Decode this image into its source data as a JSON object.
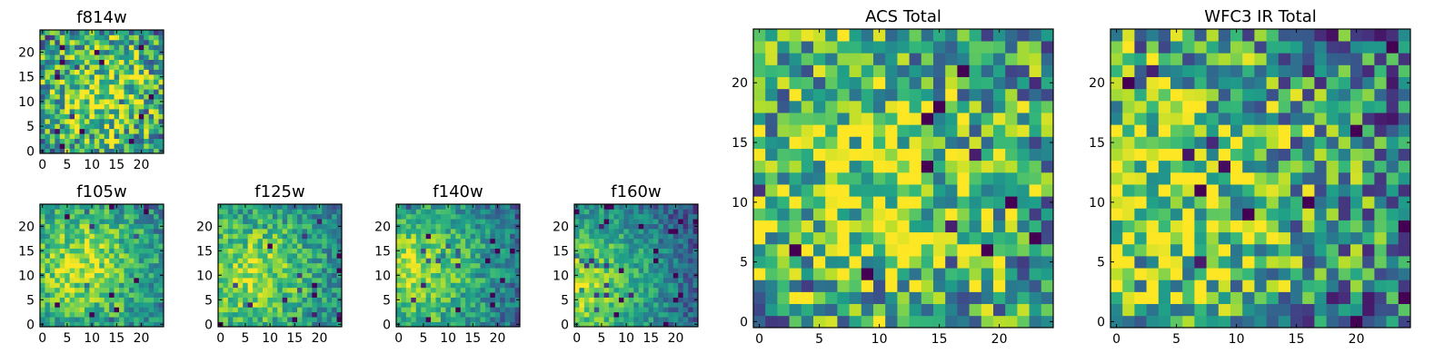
{
  "colormap": "viridis",
  "frame_color": "#000000",
  "chart_data": [
    {
      "id": "f814w",
      "type": "heatmap",
      "title": "f814w",
      "nx": 25,
      "ny": 25,
      "xlim": [
        -0.5,
        24.5
      ],
      "ylim": [
        -0.5,
        24.5
      ],
      "xticks": [
        0,
        5,
        10,
        15,
        20
      ],
      "xtick_labels": [
        "0",
        "5",
        "10",
        "15",
        "20"
      ],
      "yticks": [
        0,
        5,
        10,
        15,
        20
      ],
      "ytick_labels": [
        "0",
        "5",
        "10",
        "15",
        "20"
      ],
      "seed": 7,
      "center": [
        12,
        12
      ],
      "noise": 0.38
    },
    {
      "id": "f105w",
      "type": "heatmap",
      "title": "f105w",
      "nx": 25,
      "ny": 25,
      "xlim": [
        -0.5,
        24.5
      ],
      "ylim": [
        -0.5,
        24.5
      ],
      "xticks": [
        0,
        5,
        10,
        15,
        20
      ],
      "xtick_labels": [
        "0",
        "5",
        "10",
        "15",
        "20"
      ],
      "yticks": [
        0,
        5,
        10,
        15,
        20
      ],
      "ytick_labels": [
        "0",
        "5",
        "10",
        "15",
        "20"
      ],
      "seed": 11,
      "center": [
        8,
        12
      ],
      "noise": 0.22
    },
    {
      "id": "f125w",
      "type": "heatmap",
      "title": "f125w",
      "nx": 25,
      "ny": 25,
      "xlim": [
        -0.5,
        24.5
      ],
      "ylim": [
        -0.5,
        24.5
      ],
      "xticks": [
        0,
        5,
        10,
        15,
        20
      ],
      "xtick_labels": [
        "0",
        "5",
        "10",
        "15",
        "20"
      ],
      "yticks": [
        0,
        5,
        10,
        15,
        20
      ],
      "ytick_labels": [
        "0",
        "5",
        "10",
        "15",
        "20"
      ],
      "seed": 19,
      "center": [
        6,
        10
      ],
      "noise": 0.22
    },
    {
      "id": "f140w",
      "type": "heatmap",
      "title": "f140w",
      "nx": 25,
      "ny": 25,
      "xlim": [
        -0.5,
        24.5
      ],
      "ylim": [
        -0.5,
        24.5
      ],
      "xticks": [
        0,
        5,
        10,
        15,
        20
      ],
      "xtick_labels": [
        "0",
        "5",
        "10",
        "15",
        "20"
      ],
      "yticks": [
        0,
        5,
        10,
        15,
        20
      ],
      "ytick_labels": [
        "0",
        "5",
        "10",
        "15",
        "20"
      ],
      "seed": 23,
      "center": [
        3,
        11
      ],
      "noise": 0.2
    },
    {
      "id": "f160w",
      "type": "heatmap",
      "title": "f160w",
      "nx": 25,
      "ny": 25,
      "xlim": [
        -0.5,
        24.5
      ],
      "ylim": [
        -0.5,
        24.5
      ],
      "xticks": [
        0,
        5,
        10,
        15,
        20
      ],
      "xtick_labels": [
        "0",
        "5",
        "10",
        "15",
        "20"
      ],
      "yticks": [
        0,
        5,
        10,
        15,
        20
      ],
      "ytick_labels": [
        "0",
        "5",
        "10",
        "15",
        "20"
      ],
      "seed": 29,
      "center": [
        0,
        8
      ],
      "noise": 0.18
    },
    {
      "id": "acs_total",
      "type": "heatmap",
      "title": "ACS Total",
      "nx": 25,
      "ny": 25,
      "xlim": [
        -0.5,
        24.5
      ],
      "ylim": [
        -0.5,
        24.5
      ],
      "xticks": [
        0,
        5,
        10,
        15,
        20
      ],
      "xtick_labels": [
        "0",
        "5",
        "10",
        "15",
        "20"
      ],
      "yticks": [
        0,
        5,
        10,
        15,
        20
      ],
      "ytick_labels": [
        "0",
        "5",
        "10",
        "15",
        "20"
      ],
      "seed": 31,
      "center": [
        10,
        12
      ],
      "noise": 0.42
    },
    {
      "id": "wfc3_ir_total",
      "type": "heatmap",
      "title": "WFC3 IR Total",
      "nx": 25,
      "ny": 25,
      "xlim": [
        -0.5,
        24.5
      ],
      "ylim": [
        -0.5,
        24.5
      ],
      "xticks": [
        0,
        5,
        10,
        15,
        20
      ],
      "xtick_labels": [
        "0",
        "5",
        "10",
        "15",
        "20"
      ],
      "yticks": [
        0,
        5,
        10,
        15,
        20
      ],
      "ytick_labels": [
        "0",
        "5",
        "10",
        "15",
        "20"
      ],
      "seed": 37,
      "center": [
        4,
        10
      ],
      "noise": 0.42
    }
  ]
}
